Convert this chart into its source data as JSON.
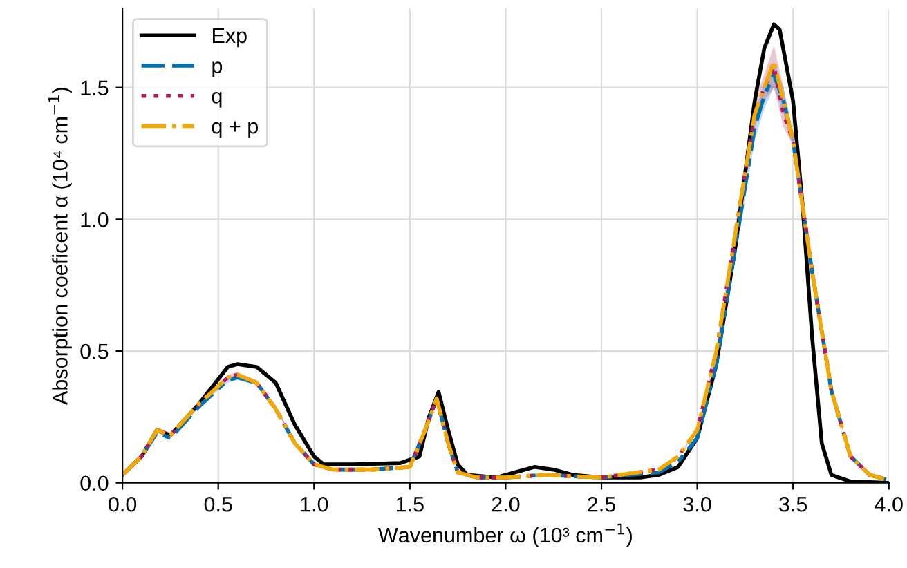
{
  "chart_data": {
    "type": "line",
    "xlabel": "Wavenumber ω (10³ cm$^{−1}$)",
    "ylabel": "Absorption coeficent α (10⁴ cm$^{−1}$)",
    "xlim": [
      0,
      4
    ],
    "ylim": [
      0,
      1.8
    ],
    "xticks": [
      {
        "value": 0,
        "label": "0.0"
      },
      {
        "value": 0.5,
        "label": "0.5"
      },
      {
        "value": 1,
        "label": "1.0"
      },
      {
        "value": 1.5,
        "label": "1.5"
      },
      {
        "value": 2,
        "label": "2.0"
      },
      {
        "value": 2.5,
        "label": "2.5"
      },
      {
        "value": 3,
        "label": "3.0"
      },
      {
        "value": 3.5,
        "label": "3.5"
      },
      {
        "value": 4,
        "label": "4.0"
      }
    ],
    "yticks": [
      {
        "value": 0,
        "label": "0.0"
      },
      {
        "value": 0.5,
        "label": "0.5"
      },
      {
        "value": 1,
        "label": "1.0"
      },
      {
        "value": 1.5,
        "label": "1.5"
      }
    ],
    "grid": true,
    "legend": "top left",
    "series": [
      {
        "name": "Exp",
        "color": "#000000",
        "line_style": "solid",
        "x": [
          0,
          0.1,
          0.18,
          0.25,
          0.4,
          0.55,
          0.6,
          0.7,
          0.8,
          0.9,
          1.0,
          1.05,
          1.2,
          1.45,
          1.55,
          1.6,
          1.65,
          1.7,
          1.75,
          1.8,
          1.95,
          2.05,
          2.15,
          2.25,
          2.35,
          2.5,
          2.7,
          2.8,
          2.9,
          3.0,
          3.1,
          3.2,
          3.3,
          3.35,
          3.4,
          3.43,
          3.5,
          3.55,
          3.6,
          3.65,
          3.7,
          3.8,
          4.0
        ],
        "values": [
          0.03,
          0.1,
          0.2,
          0.18,
          0.3,
          0.44,
          0.45,
          0.44,
          0.38,
          0.22,
          0.1,
          0.07,
          0.07,
          0.075,
          0.1,
          0.25,
          0.345,
          0.2,
          0.07,
          0.03,
          0.02,
          0.04,
          0.06,
          0.05,
          0.03,
          0.02,
          0.02,
          0.03,
          0.06,
          0.17,
          0.45,
          0.9,
          1.45,
          1.65,
          1.74,
          1.72,
          1.45,
          1.05,
          0.55,
          0.15,
          0.03,
          0.005,
          0
        ]
      },
      {
        "name": "p",
        "color": "#0072b2",
        "line_style": "dashed",
        "x": [
          0,
          0.1,
          0.18,
          0.25,
          0.4,
          0.55,
          0.6,
          0.7,
          0.8,
          0.9,
          1.0,
          1.1,
          1.3,
          1.5,
          1.58,
          1.64,
          1.7,
          1.75,
          1.85,
          2.0,
          2.2,
          2.5,
          2.8,
          2.9,
          3.0,
          3.1,
          3.2,
          3.3,
          3.35,
          3.4,
          3.45,
          3.5,
          3.6,
          3.7,
          3.8,
          3.9,
          4.0
        ],
        "values": [
          0.03,
          0.1,
          0.19,
          0.17,
          0.29,
          0.39,
          0.4,
          0.38,
          0.28,
          0.15,
          0.07,
          0.05,
          0.05,
          0.06,
          0.2,
          0.32,
          0.15,
          0.04,
          0.02,
          0.02,
          0.03,
          0.02,
          0.04,
          0.08,
          0.17,
          0.45,
          0.9,
          1.35,
          1.47,
          1.55,
          1.45,
          1.3,
          0.8,
          0.35,
          0.1,
          0.03,
          0.01
        ],
        "lower": [
          0.03,
          0.1,
          0.19,
          0.17,
          0.29,
          0.38,
          0.39,
          0.37,
          0.28,
          0.15,
          0.07,
          0.05,
          0.05,
          0.06,
          0.2,
          0.31,
          0.15,
          0.04,
          0.02,
          0.02,
          0.03,
          0.02,
          0.04,
          0.08,
          0.16,
          0.43,
          0.87,
          1.3,
          1.42,
          1.5,
          1.4,
          1.27,
          0.78,
          0.34,
          0.1,
          0.03,
          0.01
        ],
        "upper": [
          0.03,
          0.1,
          0.2,
          0.18,
          0.3,
          0.4,
          0.41,
          0.39,
          0.29,
          0.16,
          0.07,
          0.05,
          0.05,
          0.06,
          0.21,
          0.33,
          0.16,
          0.04,
          0.02,
          0.02,
          0.03,
          0.02,
          0.04,
          0.08,
          0.18,
          0.47,
          0.93,
          1.4,
          1.52,
          1.6,
          1.5,
          1.33,
          0.82,
          0.36,
          0.1,
          0.03,
          0.01
        ]
      },
      {
        "name": "q",
        "color": "#b5195b",
        "line_style": "dotted",
        "x": [
          0,
          0.1,
          0.18,
          0.25,
          0.4,
          0.55,
          0.6,
          0.7,
          0.8,
          0.9,
          1.0,
          1.1,
          1.3,
          1.5,
          1.58,
          1.64,
          1.7,
          1.75,
          1.85,
          2.0,
          2.2,
          2.5,
          2.8,
          2.9,
          3.0,
          3.1,
          3.2,
          3.3,
          3.35,
          3.4,
          3.45,
          3.5,
          3.6,
          3.7,
          3.8,
          3.9,
          4.0
        ],
        "values": [
          0.03,
          0.1,
          0.2,
          0.18,
          0.3,
          0.4,
          0.41,
          0.38,
          0.28,
          0.15,
          0.07,
          0.05,
          0.05,
          0.06,
          0.2,
          0.32,
          0.15,
          0.04,
          0.02,
          0.02,
          0.03,
          0.02,
          0.05,
          0.1,
          0.2,
          0.5,
          0.95,
          1.4,
          1.5,
          1.58,
          1.4,
          1.3,
          0.8,
          0.35,
          0.1,
          0.03,
          0.01
        ],
        "lower": [
          0.03,
          0.1,
          0.2,
          0.18,
          0.3,
          0.39,
          0.4,
          0.37,
          0.28,
          0.15,
          0.07,
          0.05,
          0.05,
          0.06,
          0.2,
          0.31,
          0.15,
          0.04,
          0.02,
          0.02,
          0.03,
          0.02,
          0.05,
          0.1,
          0.19,
          0.48,
          0.92,
          1.35,
          1.45,
          1.5,
          1.35,
          1.28,
          0.78,
          0.34,
          0.1,
          0.03,
          0.01
        ],
        "upper": [
          0.03,
          0.1,
          0.21,
          0.19,
          0.31,
          0.41,
          0.42,
          0.39,
          0.29,
          0.16,
          0.07,
          0.05,
          0.05,
          0.06,
          0.21,
          0.33,
          0.16,
          0.04,
          0.02,
          0.02,
          0.03,
          0.02,
          0.05,
          0.1,
          0.21,
          0.52,
          0.98,
          1.45,
          1.55,
          1.66,
          1.5,
          1.32,
          0.82,
          0.36,
          0.1,
          0.03,
          0.01
        ]
      },
      {
        "name": "q + p",
        "color": "#f5a800",
        "line_style": "dashdot",
        "x": [
          0,
          0.1,
          0.18,
          0.25,
          0.4,
          0.55,
          0.6,
          0.7,
          0.8,
          0.9,
          1.0,
          1.1,
          1.3,
          1.5,
          1.58,
          1.64,
          1.7,
          1.75,
          1.85,
          2.0,
          2.2,
          2.5,
          2.8,
          2.9,
          3.0,
          3.1,
          3.2,
          3.3,
          3.35,
          3.4,
          3.45,
          3.5,
          3.6,
          3.7,
          3.8,
          3.9,
          4.0
        ],
        "values": [
          0.03,
          0.1,
          0.2,
          0.18,
          0.3,
          0.4,
          0.41,
          0.38,
          0.28,
          0.15,
          0.07,
          0.05,
          0.05,
          0.06,
          0.2,
          0.32,
          0.15,
          0.04,
          0.02,
          0.02,
          0.03,
          0.02,
          0.05,
          0.1,
          0.2,
          0.5,
          0.95,
          1.4,
          1.5,
          1.6,
          1.45,
          1.3,
          0.8,
          0.35,
          0.1,
          0.03,
          0.01
        ]
      }
    ]
  }
}
